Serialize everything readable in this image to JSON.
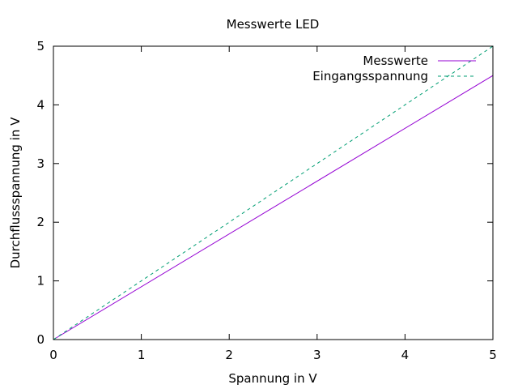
{
  "chart_data": {
    "type": "line",
    "title": "Messwerte LED",
    "xlabel": "Spannung in V",
    "ylabel": "Durchflussspannung in V",
    "xlim": [
      0,
      5
    ],
    "ylim": [
      0,
      5
    ],
    "xticks": [
      0,
      1,
      2,
      3,
      4,
      5
    ],
    "yticks": [
      0,
      1,
      2,
      3,
      4,
      5
    ],
    "grid": false,
    "legend_position": "top-right",
    "series": [
      {
        "name": "Messwerte",
        "color": "#9400d3",
        "dash": "solid",
        "x": [
          0,
          5
        ],
        "y": [
          0,
          4.5
        ]
      },
      {
        "name": "Eingangsspannung",
        "color": "#009e73",
        "dash": "dashed",
        "x": [
          0,
          5
        ],
        "y": [
          0,
          5
        ]
      }
    ]
  }
}
